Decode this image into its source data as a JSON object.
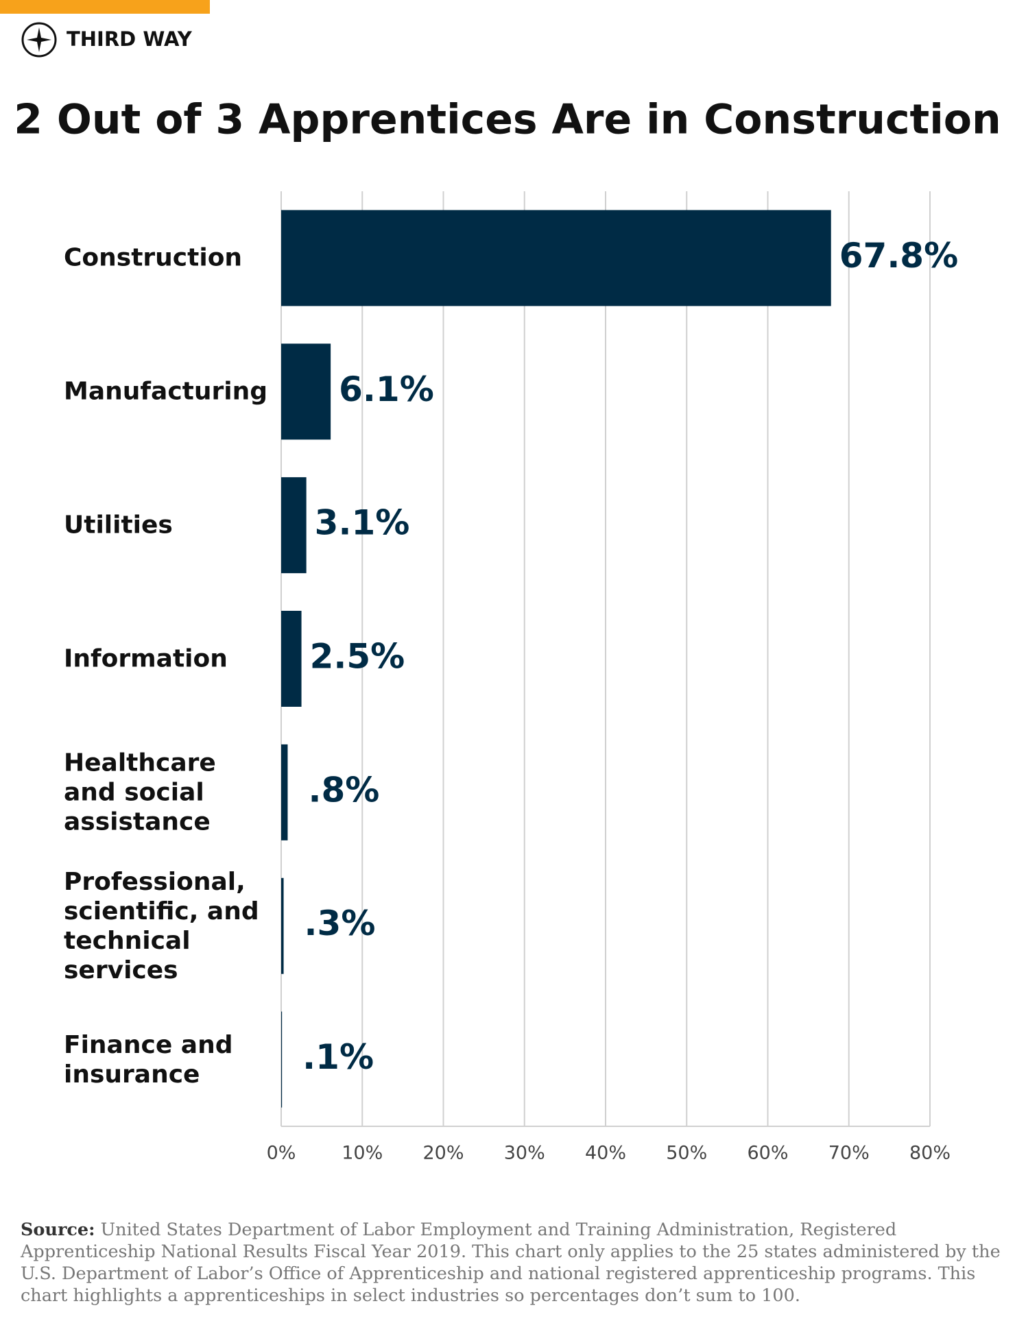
{
  "brand": "THIRD WAY",
  "chart_data": {
    "type": "bar",
    "orientation": "horizontal",
    "title": "2 Out of 3 Apprentices Are in Construction",
    "categories": [
      "Construction",
      "Manufacturing",
      "Utilities",
      "Information",
      "Healthcare and social assistance",
      "Professional, scientific, and technical services",
      "Finance and insurance"
    ],
    "values": [
      67.8,
      6.1,
      3.1,
      2.5,
      0.8,
      0.3,
      0.1
    ],
    "value_labels": [
      "67.8%",
      "6.1%",
      "3.1%",
      "2.5%",
      ".8%",
      ".3%",
      ".1%"
    ],
    "color": "#002b45",
    "xlim": [
      0,
      80
    ],
    "xticks": [
      {
        "value": 0,
        "label": "0%"
      },
      {
        "value": 10,
        "label": "10%"
      },
      {
        "value": 20,
        "label": "20%"
      },
      {
        "value": 30,
        "label": "30%"
      },
      {
        "value": 40,
        "label": "40%"
      },
      {
        "value": 50,
        "label": "50%"
      },
      {
        "value": 60,
        "label": "60%"
      },
      {
        "value": 70,
        "label": "70%"
      },
      {
        "value": 80,
        "label": "80%"
      }
    ],
    "grid": true
  },
  "source": {
    "label": "Source:",
    "text": "United States Department of Labor Employment and Training Administration, Registered Apprenticeship National Results Fiscal Year 2019. This chart only applies to the 25 states administered by the U.S. Department of Labor’s Office of Apprenticeship and national registered apprenticeship programs. This chart highlights a apprenticeships in select industries so percentages don’t sum to 100."
  }
}
